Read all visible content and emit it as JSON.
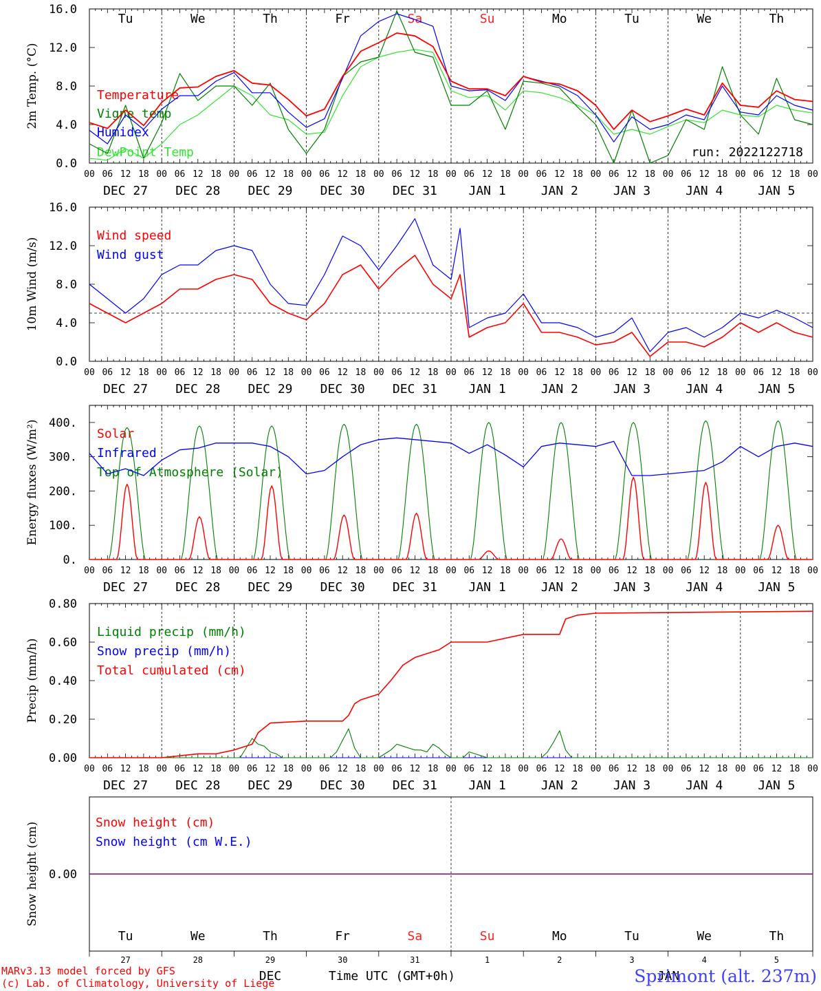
{
  "run_label": "run: 2022122718",
  "footer": {
    "credit_line1": "MARv3.13 model forced by GFS",
    "credit_line2": "(c) Lab. of Climatology, University of Liege",
    "month": "DEC",
    "month2": "JAN",
    "time_label": "Time UTC (GMT+0h)",
    "station": "Sprimont (alt. 237m)"
  },
  "days": [
    "Tu",
    "We",
    "Th",
    "Fr",
    "Sa",
    "Su",
    "Mo",
    "Tu",
    "We",
    "Th"
  ],
  "weekend_color": "#ff2020",
  "weekend_days": [
    4,
    5
  ],
  "hour_ticks": [
    "00",
    "06",
    "12",
    "18"
  ],
  "final_tick": "00",
  "date_labels": [
    "DEC 27",
    "DEC 28",
    "DEC 29",
    "DEC 30",
    "DEC 31",
    "JAN  1",
    "JAN  2",
    "JAN  3",
    "JAN  4",
    "JAN  5"
  ],
  "day_numbers": [
    "27",
    "28",
    "29",
    "30",
    "31",
    "1",
    "2",
    "3",
    "4",
    "5"
  ],
  "chart_data": [
    {
      "type": "line",
      "ylabel": "2m Temp. (°C)",
      "ylim": [
        0,
        16
      ],
      "yticks": [
        "0.0",
        "4.0",
        "8.0",
        "12.0",
        "16.0"
      ],
      "x_unit": "hours since DEC 27 00 UTC",
      "xlim": [
        0,
        240
      ],
      "grid": "vertical dashed at 00 UTC",
      "legend": "top-left",
      "series": [
        {
          "name": "Temperature",
          "color": "#ff0000",
          "x": [
            0,
            6,
            12,
            18,
            24,
            30,
            36,
            42,
            48,
            54,
            60,
            66,
            72,
            78,
            84,
            90,
            96,
            102,
            108,
            114,
            120,
            126,
            132,
            138,
            144,
            150,
            156,
            162,
            168,
            174,
            180,
            186,
            192,
            198,
            204,
            210,
            216,
            222,
            228,
            234,
            240
          ],
          "y": [
            4.2,
            3.6,
            5.5,
            3.9,
            6.3,
            7.8,
            7.9,
            9.0,
            9.6,
            8.3,
            8.1,
            6.6,
            4.9,
            5.6,
            9.0,
            11.6,
            12.5,
            13.5,
            13.2,
            12.1,
            8.5,
            7.7,
            7.7,
            7.0,
            9.0,
            8.4,
            8.2,
            7.5,
            6.0,
            3.5,
            5.5,
            4.3,
            4.9,
            5.6,
            5.0,
            8.3,
            6.0,
            5.8,
            7.5,
            6.6,
            6.4
          ]
        },
        {
          "name": "Vigne temp",
          "color": "#008000",
          "x": [
            0,
            6,
            12,
            18,
            24,
            30,
            36,
            42,
            48,
            54,
            60,
            66,
            72,
            78,
            84,
            90,
            96,
            102,
            108,
            114,
            120,
            126,
            132,
            138,
            144,
            150,
            156,
            162,
            168,
            174,
            180,
            186,
            192,
            198,
            204,
            210,
            216,
            222,
            228,
            234,
            240
          ],
          "y": [
            2.0,
            1.0,
            6.0,
            0.5,
            4.2,
            9.3,
            6.5,
            8.0,
            8.0,
            6.0,
            8.3,
            3.5,
            1.0,
            3.5,
            9.0,
            10.5,
            11.0,
            15.8,
            11.5,
            11.0,
            6.0,
            6.0,
            7.5,
            3.5,
            8.5,
            8.3,
            7.8,
            5.8,
            4.0,
            0.0,
            5.5,
            0.0,
            0.8,
            4.5,
            3.5,
            10.0,
            5.0,
            3.0,
            8.8,
            4.5,
            4.0
          ]
        },
        {
          "name": "Humidex",
          "color": "#0000ff",
          "x": [
            0,
            6,
            12,
            18,
            24,
            30,
            36,
            42,
            48,
            54,
            60,
            66,
            72,
            78,
            84,
            90,
            96,
            102,
            108,
            114,
            120,
            126,
            132,
            138,
            144,
            150,
            156,
            162,
            168,
            174,
            180,
            186,
            192,
            198,
            204,
            210,
            216,
            222,
            228,
            234,
            240
          ],
          "y": [
            3.4,
            2.0,
            5.0,
            3.5,
            5.6,
            7.0,
            7.0,
            8.5,
            9.4,
            7.3,
            7.3,
            5.3,
            3.7,
            4.6,
            8.8,
            13.2,
            14.7,
            15.5,
            14.9,
            14.2,
            8.0,
            7.5,
            7.6,
            6.5,
            9.0,
            8.5,
            8.0,
            7.0,
            5.0,
            2.2,
            4.8,
            3.5,
            4.0,
            5.0,
            4.5,
            8.0,
            5.3,
            5.0,
            7.0,
            6.0,
            5.5
          ]
        },
        {
          "name": "DewPoint Temp",
          "color": "#32e632",
          "x": [
            0,
            6,
            12,
            18,
            24,
            30,
            36,
            42,
            48,
            54,
            60,
            66,
            72,
            78,
            84,
            90,
            96,
            102,
            108,
            114,
            120,
            126,
            132,
            138,
            144,
            150,
            156,
            162,
            168,
            174,
            180,
            186,
            192,
            198,
            204,
            210,
            216,
            222,
            228,
            234,
            240
          ],
          "y": [
            0.5,
            0.3,
            1.5,
            0.5,
            2.0,
            4.0,
            5.0,
            6.5,
            8.0,
            7.0,
            5.0,
            4.5,
            3.0,
            3.2,
            7.0,
            10.0,
            11.0,
            11.5,
            11.8,
            11.5,
            7.5,
            6.8,
            7.0,
            5.5,
            7.5,
            7.3,
            6.8,
            6.0,
            5.0,
            3.0,
            3.5,
            3.0,
            3.8,
            4.5,
            4.2,
            5.5,
            5.0,
            4.8,
            6.0,
            5.5,
            5.2
          ]
        }
      ]
    },
    {
      "type": "line",
      "ylabel": "10m Wind (m/s)",
      "ylim": [
        0,
        16
      ],
      "yticks": [
        "0.0",
        "4.0",
        "8.0",
        "12.0",
        "16.0"
      ],
      "xlim": [
        0,
        240
      ],
      "reference_line": 5.0,
      "legend": "top-left",
      "series": [
        {
          "name": "Wind speed",
          "color": "#ff0000",
          "x": [
            0,
            6,
            12,
            18,
            24,
            30,
            36,
            42,
            48,
            54,
            60,
            66,
            72,
            78,
            84,
            90,
            96,
            102,
            108,
            114,
            120,
            123,
            126,
            132,
            138,
            144,
            150,
            156,
            162,
            168,
            174,
            180,
            186,
            192,
            198,
            204,
            210,
            216,
            222,
            228,
            234,
            240
          ],
          "y": [
            6.0,
            5.0,
            4.0,
            5.0,
            6.0,
            7.5,
            7.5,
            8.5,
            9.0,
            8.5,
            6.0,
            5.0,
            4.3,
            6.0,
            9.0,
            10.0,
            7.5,
            9.5,
            11.0,
            8.0,
            6.5,
            9.0,
            2.5,
            3.5,
            4.0,
            6.0,
            3.0,
            3.0,
            2.5,
            1.7,
            2.0,
            3.0,
            0.5,
            2.0,
            2.0,
            1.5,
            2.5,
            4.0,
            3.0,
            4.0,
            3.0,
            2.5
          ]
        },
        {
          "name": "Wind gust",
          "color": "#0000ff",
          "x": [
            0,
            6,
            12,
            18,
            24,
            30,
            36,
            42,
            48,
            54,
            60,
            66,
            72,
            78,
            84,
            90,
            96,
            102,
            108,
            114,
            120,
            123,
            126,
            132,
            138,
            144,
            150,
            156,
            162,
            168,
            174,
            180,
            186,
            192,
            198,
            204,
            210,
            216,
            222,
            228,
            234,
            240
          ],
          "y": [
            8.0,
            6.5,
            5.0,
            6.5,
            9.0,
            10.0,
            10.0,
            11.5,
            12.0,
            11.5,
            8.0,
            6.0,
            5.8,
            9.0,
            13.0,
            12.0,
            9.5,
            12.0,
            14.8,
            10.0,
            8.5,
            13.8,
            3.5,
            4.5,
            5.0,
            7.0,
            4.0,
            4.0,
            3.5,
            2.5,
            3.0,
            4.5,
            1.0,
            3.0,
            3.5,
            2.5,
            3.5,
            5.0,
            4.5,
            5.3,
            4.5,
            3.5
          ]
        }
      ]
    },
    {
      "type": "line",
      "ylabel": "Energy fluxes (W/m²)",
      "ylim": [
        0,
        450
      ],
      "yticks": [
        "0.",
        "100.",
        "200.",
        "300.",
        "400."
      ],
      "xlim": [
        0,
        240
      ],
      "legend": "top-left",
      "series": [
        {
          "name": "Solar",
          "color": "#ff0000",
          "peak_hour": 12.5,
          "daily_peak": [
            220,
            125,
            215,
            130,
            135,
            25,
            60,
            240,
            225,
            100
          ]
        },
        {
          "name": "Infrared",
          "color": "#0000ff",
          "x": [
            0,
            6,
            12,
            18,
            24,
            30,
            36,
            42,
            48,
            54,
            60,
            66,
            72,
            78,
            84,
            90,
            96,
            102,
            108,
            114,
            120,
            126,
            132,
            138,
            144,
            150,
            156,
            162,
            168,
            174,
            180,
            186,
            192,
            198,
            204,
            210,
            216,
            222,
            228,
            234,
            240
          ],
          "y": [
            310,
            250,
            265,
            245,
            290,
            320,
            325,
            340,
            340,
            340,
            330,
            300,
            250,
            260,
            300,
            335,
            350,
            355,
            350,
            345,
            340,
            310,
            335,
            305,
            270,
            330,
            340,
            335,
            330,
            345,
            245,
            245,
            250,
            255,
            260,
            285,
            330,
            300,
            330,
            340,
            330
          ]
        },
        {
          "name": "Top of Atmosphere (Solar)",
          "color": "#008000",
          "peak_hour": 12.5,
          "daily_peak": [
            385,
            390,
            390,
            395,
            395,
            400,
            400,
            400,
            405,
            405
          ]
        }
      ]
    },
    {
      "type": "line",
      "ylabel": "Precip (mm/h)",
      "ylim": [
        0,
        0.8
      ],
      "yticks": [
        "0.00",
        "0.20",
        "0.40",
        "0.60",
        "0.80"
      ],
      "xlim": [
        0,
        240
      ],
      "legend": "top-left",
      "series": [
        {
          "name": "Liquid precip (mm/h)",
          "color": "#008000",
          "x": [
            0,
            50,
            52,
            54,
            56,
            58,
            60,
            62,
            64,
            80,
            82,
            84,
            86,
            88,
            90,
            96,
            98,
            100,
            102,
            104,
            106,
            108,
            110,
            112,
            114,
            116,
            118,
            120,
            124,
            126,
            128,
            130,
            132,
            150,
            152,
            154,
            156,
            158,
            160,
            240
          ],
          "y": [
            0,
            0,
            0.05,
            0.1,
            0.07,
            0.06,
            0.03,
            0.02,
            0,
            0,
            0.03,
            0.09,
            0.15,
            0.05,
            0,
            0,
            0.02,
            0.04,
            0.07,
            0.06,
            0.05,
            0.04,
            0.04,
            0.03,
            0.07,
            0.05,
            0.02,
            0,
            0,
            0.03,
            0.02,
            0.01,
            0,
            0,
            0.03,
            0.08,
            0.14,
            0.04,
            0,
            0
          ]
        },
        {
          "name": "Snow precip (mm/h)",
          "color": "#0000ff",
          "x": [
            0,
            240
          ],
          "y": [
            0,
            0
          ]
        },
        {
          "name": "Total cumulated (cm)",
          "color": "#ff0000",
          "x": [
            0,
            24,
            30,
            36,
            42,
            48,
            54,
            56,
            60,
            72,
            84,
            86,
            88,
            90,
            94,
            96,
            100,
            104,
            108,
            112,
            116,
            120,
            132,
            144,
            156,
            158,
            162,
            168,
            240
          ],
          "y": [
            0,
            0,
            0.01,
            0.02,
            0.02,
            0.04,
            0.07,
            0.13,
            0.18,
            0.19,
            0.19,
            0.22,
            0.28,
            0.3,
            0.32,
            0.33,
            0.4,
            0.48,
            0.52,
            0.54,
            0.56,
            0.6,
            0.6,
            0.64,
            0.64,
            0.72,
            0.74,
            0.75,
            0.76
          ]
        }
      ]
    },
    {
      "type": "line",
      "ylabel": "Snow height (cm)",
      "yticks": [
        "0.00"
      ],
      "xlim": [
        0,
        240
      ],
      "legend": "top-left",
      "series": [
        {
          "name": "Snow height (cm)",
          "color": "#ff0000",
          "x": [
            0,
            240
          ],
          "y": [
            0,
            0
          ]
        },
        {
          "name": "Snow height (cm W.E.)",
          "color": "#0000ff",
          "x": [
            0,
            240
          ],
          "y": [
            0,
            0
          ]
        }
      ]
    }
  ]
}
